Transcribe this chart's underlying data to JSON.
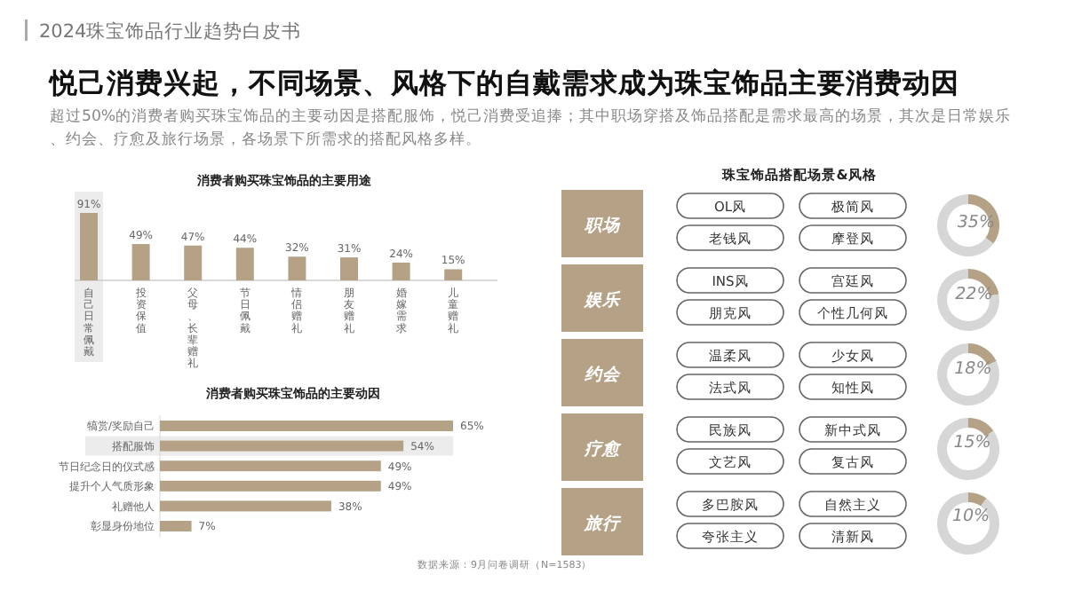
{
  "chart_data": [
    {
      "type": "other",
      "title": "2024珠宝饰品行业趋势白皮书",
      "subtitle": "悦己消费兴起，不同场景、风格下的自戴需求成为珠宝饰品主要消费动因",
      "annotations": [
        "超过50%的消费者购买珠宝饰品的主要动因是搭配服饰，悦己消费受追捧；其中职场穿搭及饰品搭配是需求最高的场景，其次是日常娱乐、约会、疗愈及旅行场景，各场景下所需求的搭配风格多样。"
      ]
    },
    {
      "type": "bar",
      "title": "消费者购买珠宝饰品的主要用途",
      "categories": [
        "自己日常佩戴",
        "投资保值",
        "父母、长辈赠礼",
        "节日佩戴",
        "情侣赠礼",
        "朋友赠礼",
        "婚嫁需求",
        "儿童赠礼"
      ],
      "values": [
        91,
        49,
        47,
        44,
        32,
        31,
        24,
        15
      ],
      "value_labels": [
        "91%",
        "49%",
        "47%",
        "44%",
        "32%",
        "31%",
        "24%",
        "15%"
      ],
      "color": "#b5a286",
      "bands": [
        {
          "axis": "x",
          "from": "自己日常佩戴",
          "to": "自己日常佩戴",
          "color": "#ececec"
        }
      ]
    },
    {
      "type": "bar",
      "orientation": "horizontal",
      "title": "消费者购买珠宝饰品的主要动因",
      "categories": [
        "犒赏/奖励自己",
        "搭配服饰",
        "节日纪念日的仪式感",
        "提升个人气质形象",
        "礼赠他人",
        "彰显身份地位"
      ],
      "values": [
        65,
        54,
        49,
        49,
        38,
        7
      ],
      "value_labels": [
        "65%",
        "54%",
        "49%",
        "49%",
        "38%",
        "7%"
      ],
      "color": "#b5a286",
      "bands": [
        {
          "axis": "y",
          "from": "搭配服饰",
          "to": "搭配服饰",
          "color": "#ececec"
        }
      ],
      "annotations": [
        "数据来源：9月问卷调研（N=1583）"
      ]
    },
    {
      "type": "other",
      "title": "珠宝饰品搭配场景&风格",
      "categories": [
        "职场",
        "娱乐",
        "约会",
        "疗愈",
        "旅行"
      ],
      "color": "#b5a286",
      "annotations": [
        "OL风",
        "极简风",
        "老钱风",
        "摩登风",
        "INS风",
        "宫廷风",
        "朋克风",
        "个性几何风",
        "温柔风",
        "少女风",
        "法式风",
        "知性风",
        "民族风",
        "新中式风",
        "文艺风",
        "复古风",
        "多巴胺风",
        "自然主义",
        "夸张主义",
        "清新风"
      ]
    },
    {
      "type": "donut",
      "categories": [
        null,
        null
      ],
      "values": [
        35,
        65
      ],
      "colors": [
        "#b5a286",
        "#d6d6d6"
      ],
      "value_labels": [
        "35%",
        null
      ]
    },
    {
      "type": "donut",
      "categories": [
        null,
        null
      ],
      "values": [
        22,
        78
      ],
      "colors": [
        "#b5a286",
        "#d6d6d6"
      ],
      "value_labels": [
        "22%",
        null
      ]
    },
    {
      "type": "donut",
      "categories": [
        null,
        null
      ],
      "values": [
        18,
        82
      ],
      "colors": [
        "#b5a286",
        "#d6d6d6"
      ],
      "value_labels": [
        "18%",
        null
      ]
    },
    {
      "type": "donut",
      "categories": [
        null,
        null
      ],
      "values": [
        15,
        85
      ],
      "colors": [
        "#b5a286",
        "#d6d6d6"
      ],
      "value_labels": [
        "15%",
        null
      ]
    },
    {
      "type": "donut",
      "categories": [
        null,
        null
      ],
      "values": [
        10,
        90
      ],
      "colors": [
        "#b5a286",
        "#d6d6d6"
      ],
      "value_labels": [
        "10%",
        null
      ]
    }
  ]
}
